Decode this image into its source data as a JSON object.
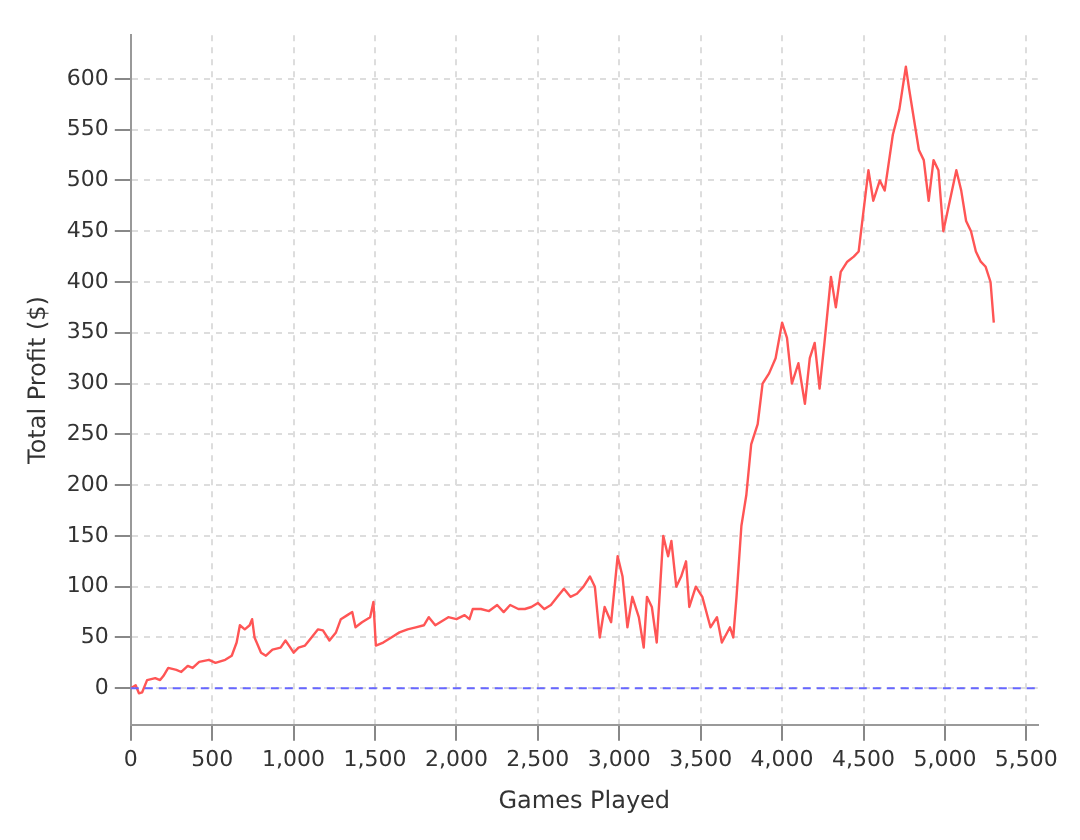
{
  "chart_data": {
    "type": "line",
    "xlabel": "Games Played",
    "ylabel": "Total Profit ($)",
    "grid": true,
    "legend": false,
    "marker": "none",
    "line_style": "solid",
    "xlim": [
      0,
      5570
    ],
    "ylim": [
      -36,
      643
    ],
    "xticks": [
      0,
      500,
      {
        "value": 1000,
        "label": "1,000"
      },
      {
        "value": 1500,
        "label": "1,500"
      },
      {
        "value": 2000,
        "label": "2,000"
      },
      {
        "value": 2500,
        "label": "2,500"
      },
      {
        "value": 3000,
        "label": "3,000"
      },
      {
        "value": 3500,
        "label": "3,500"
      },
      {
        "value": 4000,
        "label": "4,000"
      },
      {
        "value": 4500,
        "label": "4,500"
      },
      {
        "value": 5000,
        "label": "5,000"
      },
      {
        "value": 5500,
        "label": "5,500"
      }
    ],
    "yticks": [
      0,
      50,
      100,
      150,
      200,
      250,
      300,
      350,
      400,
      450,
      500,
      550,
      600
    ],
    "ref_lines": [
      {
        "axis": "y",
        "value": 0,
        "color": "#6666ff",
        "line_style": "dashed"
      }
    ],
    "series": [
      {
        "color": "#ff5555",
        "x": [
          0,
          30,
          50,
          70,
          100,
          150,
          180,
          200,
          230,
          280,
          310,
          350,
          380,
          420,
          480,
          520,
          580,
          620,
          650,
          670,
          700,
          730,
          745,
          760,
          800,
          830,
          870,
          920,
          950,
          980,
          1000,
          1030,
          1070,
          1100,
          1150,
          1180,
          1220,
          1260,
          1290,
          1330,
          1360,
          1380,
          1420,
          1470,
          1490,
          1505,
          1550,
          1600,
          1650,
          1700,
          1750,
          1800,
          1830,
          1870,
          1900,
          1950,
          2000,
          2050,
          2080,
          2100,
          2150,
          2200,
          2250,
          2290,
          2330,
          2380,
          2420,
          2460,
          2500,
          2540,
          2580,
          2620,
          2660,
          2700,
          2740,
          2780,
          2820,
          2850,
          2880,
          2910,
          2950,
          2990,
          3020,
          3050,
          3080,
          3120,
          3150,
          3170,
          3200,
          3230,
          3270,
          3300,
          3320,
          3350,
          3380,
          3410,
          3430,
          3470,
          3510,
          3560,
          3600,
          3630,
          3680,
          3700,
          3720,
          3750,
          3780,
          3810,
          3850,
          3880,
          3920,
          3960,
          4000,
          4030,
          4060,
          4100,
          4140,
          4170,
          4200,
          4230,
          4260,
          4300,
          4330,
          4360,
          4400,
          4440,
          4470,
          4500,
          4530,
          4560,
          4600,
          4630,
          4680,
          4720,
          4760,
          4780,
          4810,
          4840,
          4870,
          4900,
          4930,
          4960,
          4990,
          5030,
          5070,
          5100,
          5130,
          5160,
          5190,
          5220,
          5250,
          5280,
          5300
        ],
        "values": [
          0,
          3,
          -5,
          -4,
          8,
          10,
          8,
          12,
          20,
          18,
          16,
          22,
          20,
          26,
          28,
          25,
          28,
          32,
          45,
          62,
          58,
          62,
          68,
          50,
          35,
          32,
          38,
          40,
          47,
          40,
          35,
          40,
          42,
          48,
          58,
          57,
          47,
          55,
          68,
          72,
          75,
          60,
          65,
          70,
          85,
          42,
          45,
          50,
          55,
          58,
          60,
          62,
          70,
          62,
          65,
          70,
          68,
          72,
          68,
          78,
          78,
          76,
          82,
          75,
          82,
          78,
          78,
          80,
          84,
          78,
          82,
          90,
          98,
          90,
          93,
          100,
          110,
          100,
          50,
          80,
          65,
          130,
          110,
          60,
          90,
          70,
          40,
          90,
          80,
          45,
          150,
          130,
          145,
          100,
          110,
          125,
          80,
          100,
          90,
          60,
          70,
          45,
          60,
          50,
          90,
          160,
          190,
          240,
          260,
          300,
          310,
          325,
          360,
          345,
          300,
          320,
          280,
          325,
          340,
          295,
          340,
          405,
          375,
          410,
          420,
          425,
          430,
          470,
          510,
          480,
          500,
          490,
          545,
          570,
          612,
          590,
          560,
          530,
          520,
          480,
          520,
          510,
          450,
          480,
          510,
          490,
          460,
          450,
          430,
          420,
          415,
          400,
          360
        ]
      }
    ]
  }
}
